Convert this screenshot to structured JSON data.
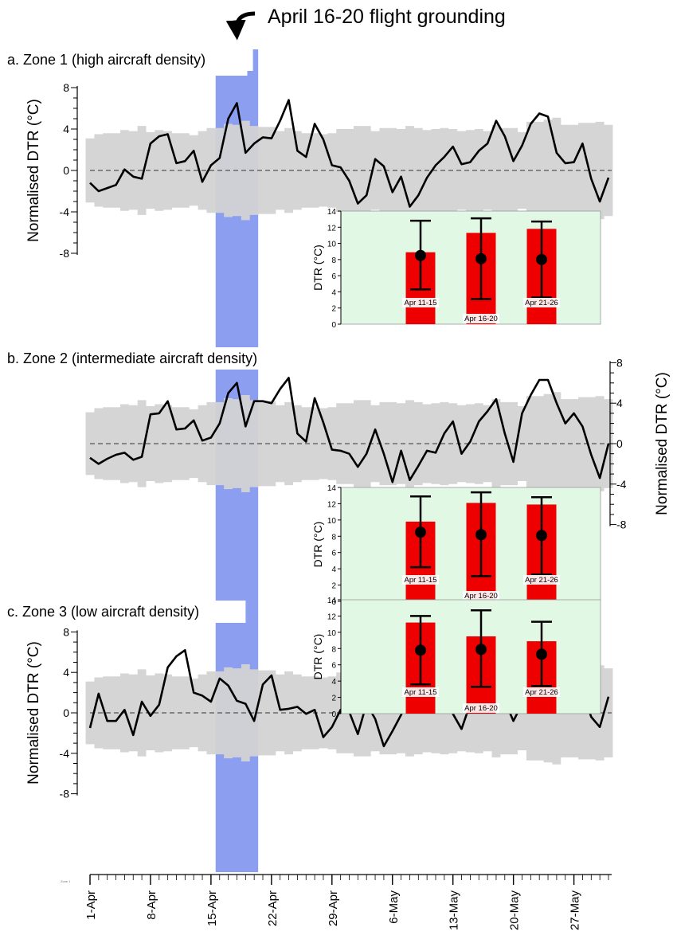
{
  "annotation": "April 16-20 flight grounding",
  "zone_caption_tiny": "Zone 1",
  "x_ticks": [
    "1-Apr",
    "8-Apr",
    "15-Apr",
    "22-Apr",
    "29-Apr",
    "6-May",
    "13-May",
    "20-May",
    "27-May"
  ],
  "colors": {
    "line": "#000000",
    "envelope": "#d3d3d3",
    "grounding": "#8b9ef0",
    "inset_bg": "#e0f8e4",
    "bar": "#ee0000"
  },
  "chart_data": [
    {
      "type": "line",
      "panel": "a",
      "title": "a. Zone 1 (high aircraft density)",
      "ylabel": "Normalised DTR (°C)",
      "ylim": [
        -8,
        8
      ],
      "yticks": [
        -8,
        -4,
        0,
        4,
        8
      ],
      "x_start": "1-Apr",
      "x_step_days": 1,
      "series": [
        {
          "values": [
            -1.2,
            -2.0,
            -1.7,
            -1.4,
            0.1,
            -0.6,
            -0.8,
            2.6,
            3.3,
            3.5,
            0.7,
            0.9,
            1.9,
            -1.1,
            0.5,
            1.2,
            5.0,
            6.5,
            1.7,
            2.6,
            3.2,
            3.1,
            4.8,
            6.8,
            1.9,
            1.3,
            4.5,
            3.0,
            0.5,
            0.3,
            -1.0,
            -3.2,
            -2.4,
            1.1,
            0.4,
            -2.1,
            -0.6,
            -3.5,
            -2.4,
            -0.7,
            0.5,
            1.3,
            2.3,
            0.6,
            0.8,
            1.9,
            2.6,
            4.8,
            3.3,
            0.9,
            2.4,
            4.5,
            5.5,
            5.2,
            1.7,
            0.7,
            0.8,
            2.6,
            -0.8,
            -3.0,
            -0.7
          ]
        }
      ],
      "envelope_halfwidth": [
        3.1,
        3.5,
        3.6,
        3.6,
        3.9,
        3.8,
        4.3,
        3.7,
        3.9,
        3.8,
        3.6,
        3.6,
        3.4,
        3.8,
        4.1,
        4.1,
        4.5,
        4.4,
        4.8,
        4.3,
        4.2,
        4.2,
        3.8,
        4.1,
        3.8,
        3.6,
        3.6,
        3.5,
        3.6,
        4.0,
        4.0,
        4.3,
        4.3,
        3.8,
        4.1,
        4.1,
        4.0,
        4.3,
        4.1,
        3.9,
        4.0,
        4.1,
        4.0,
        3.8,
        3.9,
        4.0,
        3.8,
        4.4,
        4.1,
        4.1,
        3.7,
        4.7,
        4.7,
        4.9,
        5.1,
        4.4,
        4.4,
        4.6,
        4.6,
        4.7,
        4.4
      ],
      "grounding_period": [
        "16-Apr",
        "20-Apr"
      ],
      "inset": {
        "type": "bar",
        "ylabel": "DTR (°C)",
        "ylim": [
          0,
          14
        ],
        "yticks": [
          0,
          2,
          4,
          6,
          8,
          10,
          12,
          14
        ],
        "categories": [
          "Apr 11-15",
          "Apr 16-20",
          "Apr 21-26"
        ],
        "values": [
          8.9,
          11.3,
          11.8
        ],
        "means": [
          8.5,
          8.1,
          8.0
        ],
        "err_low": [
          4.3,
          3.1,
          3.3
        ],
        "err_high": [
          12.8,
          13.1,
          12.7
        ]
      }
    },
    {
      "type": "line",
      "panel": "b",
      "title": "b. Zone 2 (intermediate aircraft density)",
      "ylabel": "Normalised DTR (°C)",
      "ylim": [
        -8,
        8
      ],
      "yticks": [
        -8,
        -4,
        0,
        4,
        8
      ],
      "x_start": "1-Apr",
      "x_step_days": 1,
      "series": [
        {
          "values": [
            -1.4,
            -2.0,
            -1.5,
            -1.1,
            -0.9,
            -1.6,
            -1.3,
            2.9,
            3.0,
            4.2,
            1.4,
            1.5,
            2.3,
            0.3,
            0.6,
            2.0,
            5.0,
            6.0,
            1.7,
            4.2,
            4.2,
            4.0,
            5.4,
            6.5,
            1.0,
            0.2,
            4.5,
            2.1,
            -0.6,
            -0.7,
            -1.0,
            -2.3,
            -1.0,
            1.4,
            -1.0,
            -3.8,
            -0.7,
            -3.6,
            -2.2,
            -0.7,
            -0.9,
            1.0,
            2.2,
            -1.0,
            0.2,
            2.2,
            3.2,
            4.4,
            1.0,
            -1.8,
            3.0,
            4.8,
            6.3,
            6.3,
            4.0,
            2.0,
            3.0,
            1.7,
            -1.1,
            -3.4,
            0.0
          ]
        }
      ],
      "envelope_halfwidth": [
        3.1,
        3.5,
        3.6,
        3.6,
        3.9,
        3.8,
        4.3,
        3.7,
        3.9,
        3.8,
        3.6,
        3.6,
        3.4,
        3.8,
        4.1,
        4.1,
        4.5,
        4.4,
        4.8,
        4.3,
        4.2,
        4.2,
        3.8,
        4.1,
        3.8,
        3.6,
        3.6,
        3.5,
        3.6,
        4.0,
        4.0,
        4.3,
        4.3,
        3.8,
        4.1,
        4.1,
        4.0,
        4.3,
        4.1,
        3.9,
        4.0,
        4.1,
        4.0,
        3.8,
        3.9,
        4.0,
        3.8,
        4.4,
        4.1,
        4.1,
        3.7,
        4.7,
        4.7,
        4.9,
        5.1,
        4.4,
        4.4,
        4.6,
        4.6,
        4.7,
        4.4
      ],
      "grounding_period": [
        "16-Apr",
        "20-Apr"
      ],
      "inset": {
        "type": "bar",
        "ylabel": "DTR (°C)",
        "ylim": [
          0,
          14
        ],
        "yticks": [
          0,
          2,
          4,
          6,
          8,
          10,
          12,
          14
        ],
        "categories": [
          "Apr 11-15",
          "Apr 16-20",
          "Apr 21-26"
        ],
        "values": [
          9.8,
          12.1,
          11.9
        ],
        "means": [
          8.5,
          8.2,
          8.1
        ],
        "err_low": [
          4.2,
          3.1,
          3.3
        ],
        "err_high": [
          12.9,
          13.4,
          12.8
        ]
      }
    },
    {
      "type": "line",
      "panel": "c",
      "title": "c. Zone 3 (low aircraft density)",
      "ylabel": "Normalised DTR (°C)",
      "ylim": [
        -8,
        8
      ],
      "yticks": [
        -8,
        -4,
        0,
        4,
        8
      ],
      "x_start": "1-Apr",
      "x_step_days": 1,
      "series": [
        {
          "values": [
            -1.5,
            1.9,
            -0.8,
            -0.8,
            0.3,
            -2.2,
            1.1,
            -0.3,
            0.8,
            4.5,
            5.6,
            6.2,
            2.0,
            1.7,
            1.1,
            3.4,
            2.7,
            1.2,
            0.9,
            -0.8,
            2.8,
            3.7,
            0.3,
            0.4,
            0.6,
            -0.1,
            0.3,
            -2.4,
            -1.4,
            0.3,
            0.1,
            -2.1,
            0.9,
            -0.6,
            -3.3,
            -1.8,
            -0.2,
            1.7,
            1.2,
            0.2,
            0.8,
            1.1,
            -0.1,
            -1.6,
            0.9,
            0.9,
            1.7,
            3.2,
            1.2,
            -0.8,
            0.9,
            3.2,
            4.1,
            2.8,
            2.8,
            0.6,
            1.1,
            2.1,
            -0.4,
            -1.4,
            1.6
          ]
        }
      ],
      "envelope_halfwidth": [
        3.1,
        3.5,
        3.6,
        3.6,
        3.9,
        3.8,
        4.3,
        3.7,
        3.9,
        3.8,
        3.6,
        3.6,
        3.4,
        3.8,
        4.1,
        4.1,
        4.5,
        4.4,
        4.8,
        4.3,
        4.2,
        4.2,
        3.8,
        4.1,
        3.8,
        3.6,
        3.6,
        3.5,
        3.6,
        4.0,
        4.0,
        4.3,
        4.3,
        3.8,
        4.1,
        4.1,
        4.0,
        4.3,
        4.1,
        3.9,
        4.0,
        4.1,
        4.0,
        3.8,
        3.9,
        4.0,
        3.8,
        4.4,
        4.1,
        4.1,
        3.7,
        4.7,
        4.7,
        4.9,
        5.1,
        4.4,
        4.4,
        4.6,
        4.6,
        4.7,
        4.4
      ],
      "grounding_period": [
        "16-Apr",
        "20-Apr"
      ],
      "inset": {
        "type": "bar",
        "ylabel": "DTR (°C)",
        "ylim": [
          0,
          14
        ],
        "yticks": [
          0,
          2,
          4,
          6,
          8,
          10,
          12,
          14
        ],
        "categories": [
          "Apr 11-15",
          "Apr 16-20",
          "Apr 21-26"
        ],
        "values": [
          11.2,
          9.5,
          8.9
        ],
        "means": [
          7.8,
          7.9,
          7.3
        ],
        "err_low": [
          3.6,
          3.3,
          3.4
        ],
        "err_high": [
          12.0,
          12.7,
          11.3
        ]
      }
    }
  ]
}
